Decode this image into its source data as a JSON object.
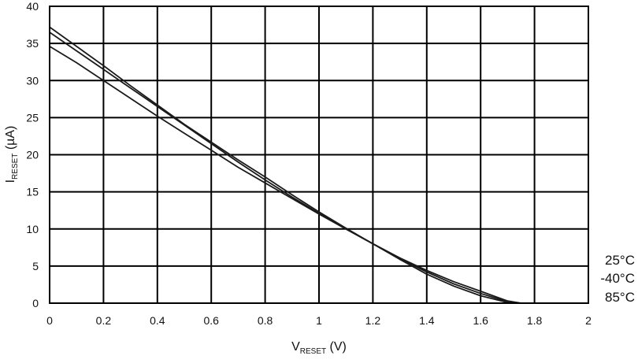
{
  "chart_data": {
    "type": "line",
    "title": "",
    "xlabel": {
      "main": "V",
      "sub": "RESET",
      "unit": " (V)"
    },
    "ylabel": {
      "main": "I",
      "sub": "RESET",
      "unit": "  (µA)"
    },
    "xlim": [
      0,
      2
    ],
    "ylim": [
      0,
      40
    ],
    "xticks": [
      "0",
      "0.2",
      "0.4",
      "0.6",
      "0.8",
      "1",
      "1.2",
      "1.4",
      "1.6",
      "1.8",
      "2"
    ],
    "yticks": [
      "0",
      "5",
      "10",
      "15",
      "20",
      "25",
      "30",
      "35",
      "40"
    ],
    "grid": true,
    "legend_position": "right-bottom",
    "series": [
      {
        "name": "25°C",
        "x": [
          0,
          0.1,
          0.2,
          0.3,
          0.4,
          0.5,
          0.6,
          0.7,
          0.8,
          0.9,
          1.0,
          1.1,
          1.2,
          1.3,
          1.4,
          1.5,
          1.6,
          1.7,
          1.75,
          1.8
        ],
        "y": [
          36.5,
          34.0,
          31.5,
          29.0,
          26.5,
          24.0,
          21.5,
          19.0,
          16.6,
          14.3,
          12.1,
          10.0,
          8.0,
          6.0,
          4.2,
          2.6,
          1.3,
          0.2,
          0.0,
          0.0
        ]
      },
      {
        "name": "-40°C",
        "x": [
          0,
          0.1,
          0.2,
          0.3,
          0.4,
          0.5,
          0.6,
          0.7,
          0.8,
          0.9,
          1.0,
          1.1,
          1.2,
          1.3,
          1.4,
          1.5,
          1.6,
          1.7,
          1.75,
          1.8
        ],
        "y": [
          37.2,
          34.6,
          32.0,
          29.3,
          26.7,
          24.1,
          21.7,
          19.3,
          17.0,
          14.6,
          12.3,
          10.1,
          8.0,
          5.9,
          3.9,
          2.3,
          1.0,
          0.1,
          0.0,
          0.0
        ]
      },
      {
        "name": "85°C",
        "x": [
          0,
          0.1,
          0.2,
          0.3,
          0.4,
          0.5,
          0.6,
          0.7,
          0.8,
          0.9,
          1.0,
          1.1,
          1.2,
          1.3,
          1.4,
          1.5,
          1.6,
          1.7,
          1.75,
          1.8
        ],
        "y": [
          34.6,
          32.4,
          30.0,
          27.6,
          25.2,
          22.9,
          20.6,
          18.3,
          16.2,
          14.1,
          12.0,
          10.0,
          8.0,
          6.1,
          4.4,
          2.9,
          1.6,
          0.3,
          0.0,
          0.0
        ]
      }
    ]
  }
}
